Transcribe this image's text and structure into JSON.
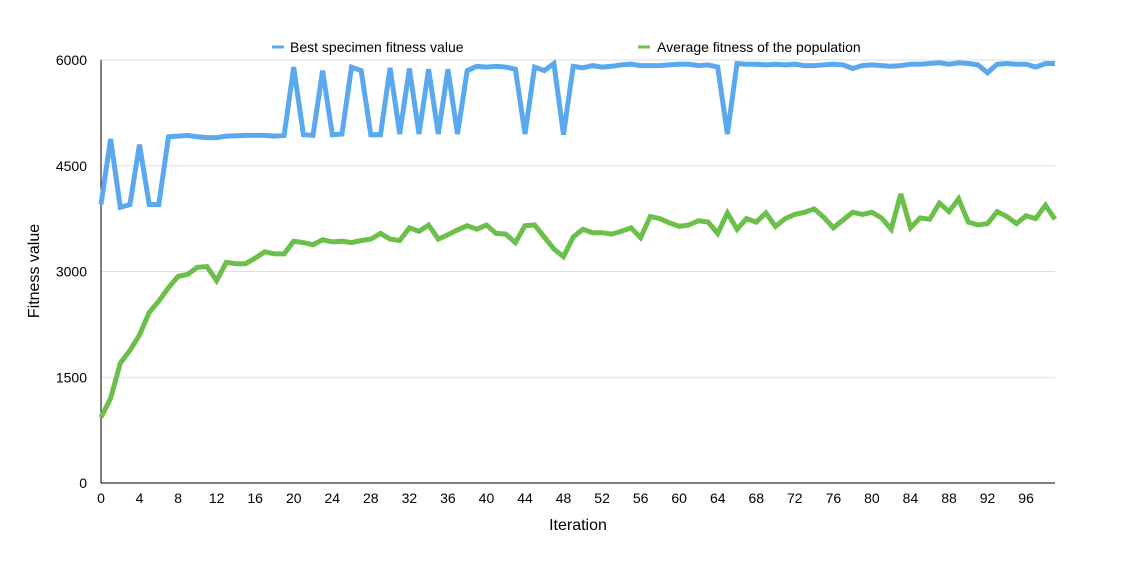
{
  "chart_data": {
    "type": "line",
    "xlabel": "Iteration",
    "ylabel": "Fitness value",
    "xlim": [
      0,
      99
    ],
    "ylim": [
      0,
      6000
    ],
    "x_ticks": [
      "0",
      "4",
      "8",
      "12",
      "16",
      "20",
      "24",
      "28",
      "32",
      "36",
      "40",
      "44",
      "48",
      "52",
      "56",
      "60",
      "64",
      "68",
      "72",
      "76",
      "80",
      "84",
      "88",
      "92",
      "96"
    ],
    "y_ticks": [
      "0",
      "1500",
      "3000",
      "4500",
      "6000"
    ],
    "grid": "horizontal",
    "legend": "top-center",
    "series": [
      {
        "name": "Best specimen fitness value",
        "color": "#5aa9ef",
        "values": [
          3950,
          4880,
          3910,
          3950,
          4800,
          3950,
          3950,
          4910,
          4920,
          4930,
          4910,
          4900,
          4900,
          4920,
          4925,
          4930,
          4930,
          4930,
          4920,
          4930,
          5900,
          4940,
          4930,
          5850,
          4940,
          4950,
          5900,
          5850,
          4940,
          4940,
          5890,
          4950,
          5880,
          4950,
          5870,
          4950,
          5870,
          4950,
          5850,
          5910,
          5900,
          5910,
          5900,
          5870,
          4950,
          5900,
          5850,
          5950,
          4940,
          5910,
          5890,
          5920,
          5900,
          5910,
          5930,
          5940,
          5920,
          5920,
          5920,
          5930,
          5940,
          5940,
          5920,
          5930,
          5900,
          4950,
          5950,
          5940,
          5940,
          5930,
          5940,
          5930,
          5940,
          5920,
          5920,
          5930,
          5940,
          5930,
          5880,
          5920,
          5930,
          5920,
          5910,
          5920,
          5940,
          5940,
          5950,
          5960,
          5940,
          5960,
          5950,
          5930,
          5820,
          5940,
          5950,
          5940,
          5940,
          5900,
          5950,
          5950
        ]
      },
      {
        "name": "Average fitness of the population",
        "color": "#6cbf4a",
        "values": [
          930,
          1200,
          1700,
          1880,
          2100,
          2420,
          2580,
          2770,
          2930,
          2960,
          3060,
          3070,
          2870,
          3130,
          3110,
          3110,
          3190,
          3280,
          3250,
          3250,
          3430,
          3410,
          3380,
          3450,
          3420,
          3430,
          3410,
          3440,
          3460,
          3540,
          3460,
          3440,
          3620,
          3570,
          3660,
          3460,
          3520,
          3590,
          3650,
          3600,
          3660,
          3540,
          3530,
          3410,
          3650,
          3660,
          3490,
          3320,
          3210,
          3490,
          3600,
          3550,
          3550,
          3530,
          3570,
          3620,
          3480,
          3780,
          3750,
          3690,
          3640,
          3660,
          3720,
          3700,
          3540,
          3830,
          3600,
          3750,
          3700,
          3830,
          3640,
          3750,
          3810,
          3840,
          3890,
          3770,
          3620,
          3730,
          3840,
          3810,
          3840,
          3760,
          3600,
          4100,
          3620,
          3760,
          3740,
          3970,
          3850,
          4030,
          3700,
          3660,
          3680,
          3850,
          3780,
          3680,
          3790,
          3750,
          3940,
          3740
        ]
      }
    ]
  }
}
